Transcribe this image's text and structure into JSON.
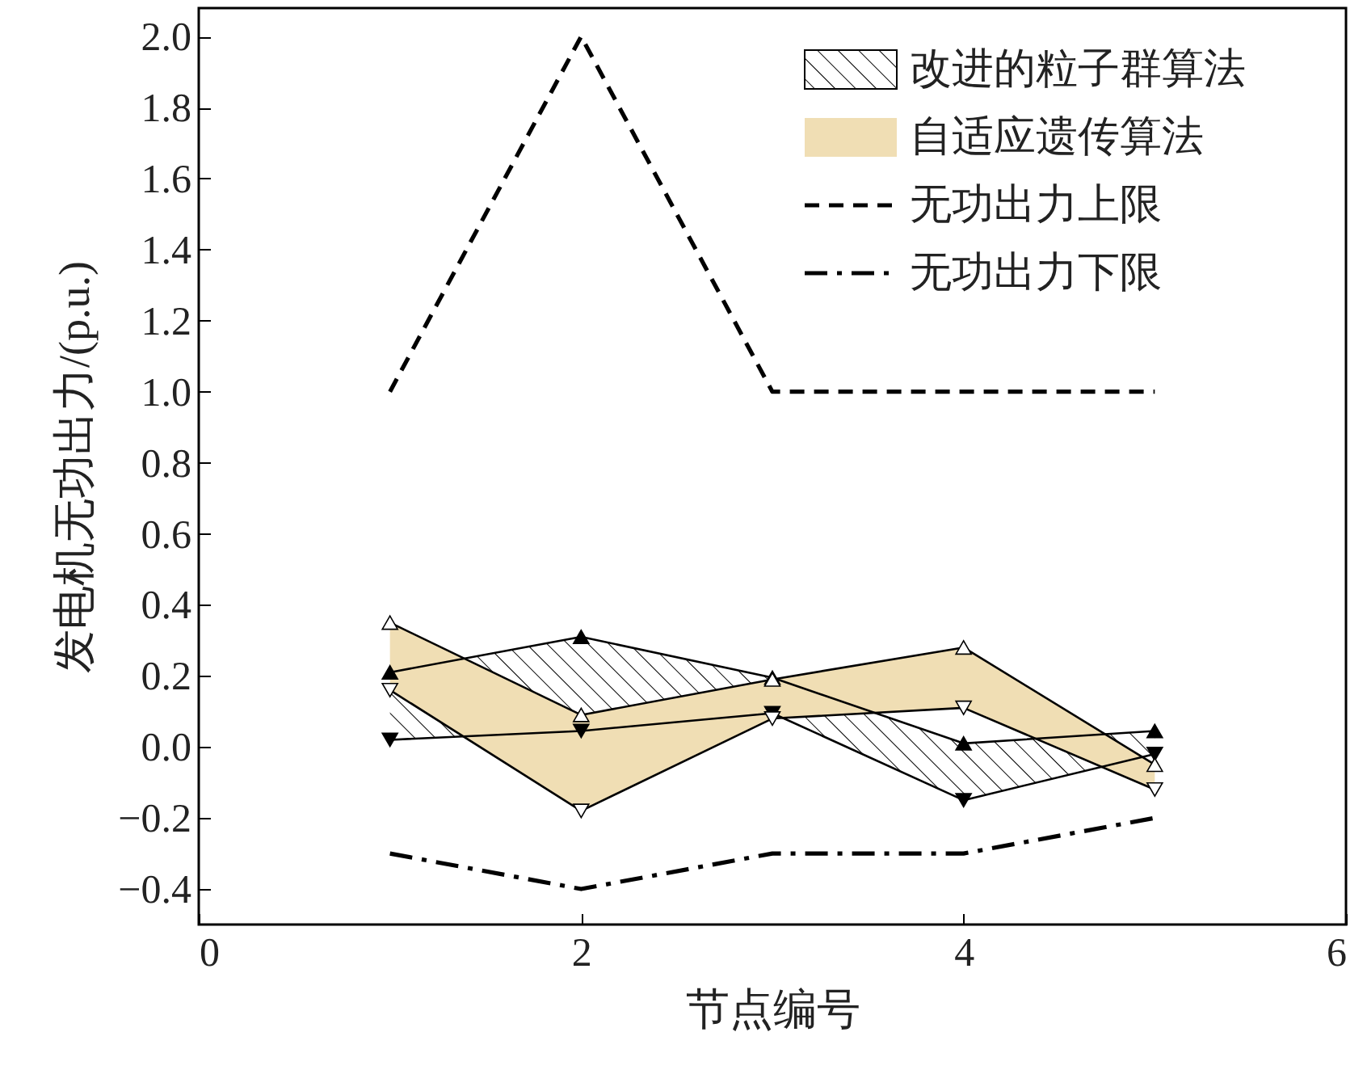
{
  "chart_data": {
    "type": "area",
    "xlabel": "节点编号",
    "ylabel": "发电机无功出力/(p.u.)",
    "x": [
      1,
      2,
      3,
      4,
      5
    ],
    "xlim": [
      0,
      6
    ],
    "xticks": [
      0,
      2,
      4,
      6
    ],
    "ylim": [
      -0.5,
      2.08
    ],
    "yticks": [
      {
        "value": -0.4,
        "label": "−0.4"
      },
      {
        "value": -0.2,
        "label": "−0.2"
      },
      {
        "value": 0,
        "label": "0.0"
      },
      0.2,
      0.4,
      0.6,
      0.8,
      {
        "value": 1,
        "label": "1.0"
      },
      1.2,
      1.4,
      1.6,
      1.8,
      {
        "value": 2,
        "label": "2.0"
      }
    ],
    "grid": false,
    "legend": "top right",
    "series": [
      {
        "name": "改进的粒子群算法",
        "color": "#000000",
        "values": [
          null,
          null,
          null,
          null,
          null
        ],
        "upper": [
          0.21,
          0.31,
          0.195,
          0.01,
          0.045
        ],
        "lower": [
          0.02,
          0.045,
          0.095,
          -0.15,
          -0.02
        ]
      },
      {
        "type": "line",
        "marker": "triangle",
        "color": "#000000",
        "values": [
          0.21,
          0.31,
          0.195,
          0.01,
          0.045
        ]
      },
      {
        "type": "line",
        "marker": "triangle",
        "color": "#000000",
        "values": [
          0.02,
          0.045,
          0.095,
          -0.15,
          -0.02
        ]
      },
      {
        "name": "自适应遗传算法",
        "color": "#f0deb4",
        "values": [
          null,
          null,
          null,
          null,
          null
        ],
        "upper": [
          0.35,
          0.09,
          0.19,
          0.28,
          -0.05
        ],
        "lower": [
          0.16,
          -0.18,
          0.08,
          0.11,
          -0.12
        ]
      },
      {
        "type": "line",
        "marker": "triangle",
        "color": "#000000",
        "values": [
          0.35,
          0.09,
          0.19,
          0.28,
          -0.05
        ]
      },
      {
        "type": "line",
        "marker": "triangle",
        "color": "#000000",
        "values": [
          0.16,
          -0.18,
          0.08,
          0.11,
          -0.12
        ]
      },
      {
        "name": "无功出力上限",
        "type": "line",
        "line_style": "dashed",
        "color": "#000000",
        "values": [
          1,
          2,
          1,
          1,
          1
        ]
      },
      {
        "name": "无功出力下限",
        "type": "line",
        "line_style": "dashdot",
        "color": "#000000",
        "values": [
          -0.3,
          -0.4,
          -0.3,
          -0.3,
          -0.2
        ]
      }
    ]
  }
}
